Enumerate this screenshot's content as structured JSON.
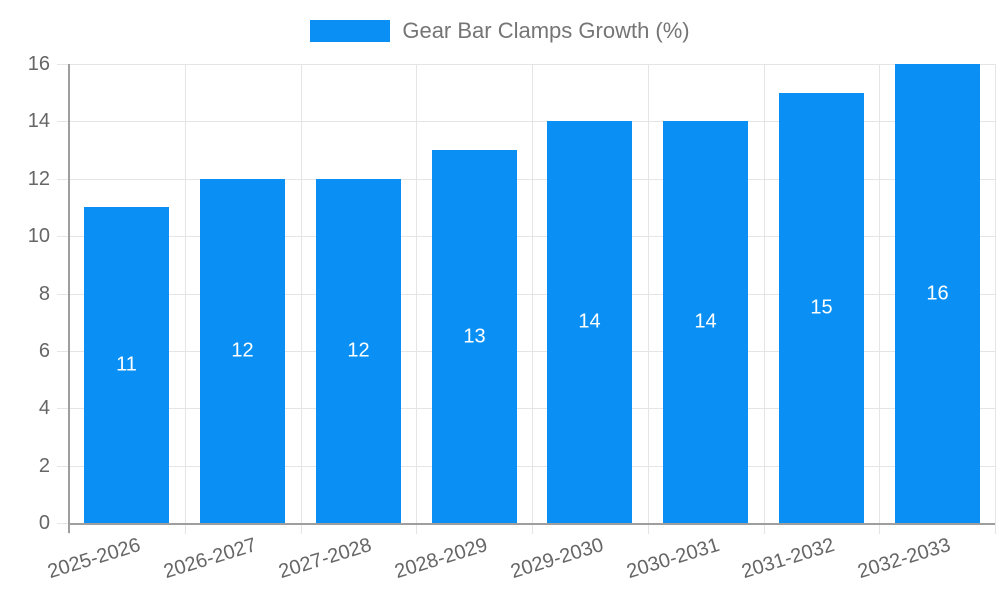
{
  "chart_data": {
    "type": "bar",
    "title": "Gear Bar Clamps Growth (%)",
    "categories": [
      "2025-2026",
      "2026-2027",
      "2027-2028",
      "2028-2029",
      "2029-2030",
      "2030-2031",
      "2031-2032",
      "2032-2033"
    ],
    "values": [
      11,
      12,
      12,
      13,
      14,
      14,
      15,
      16
    ],
    "series": [
      {
        "name": "Gear Bar Clamps Growth (%)",
        "values": [
          11,
          12,
          12,
          13,
          14,
          14,
          15,
          16
        ]
      }
    ],
    "xlabel": "",
    "ylabel": "",
    "ylim": [
      0,
      16
    ],
    "ytick_step": 2,
    "yticks": [
      0,
      2,
      4,
      6,
      8,
      10,
      12,
      14,
      16
    ],
    "grid": true,
    "legend_position": "top",
    "bar_color": "#0A90F5",
    "value_label_color": "#FFFFFF",
    "grid_color": "#E5E5E5",
    "axis_color": "#9E9E9E",
    "tick_text_color": "#666666",
    "legend_text_color": "#757575"
  }
}
